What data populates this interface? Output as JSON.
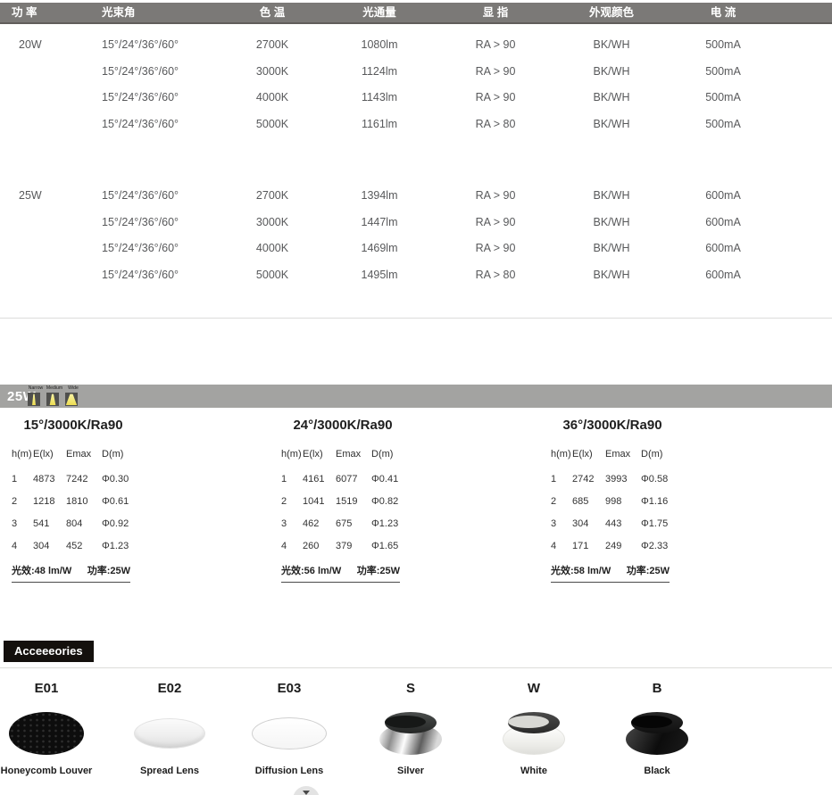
{
  "colors": {
    "header_bar_bg": "#7b7977",
    "band_bg": "#a3a3a1",
    "section_label_bg": "#14100d",
    "beam_yellow": "#eede52"
  },
  "spec_table": {
    "headers": {
      "power": "功 率",
      "beam_angle": "光束角",
      "cct": "色 温",
      "flux": "光通量",
      "cri": "显 指",
      "finish": "外观颜色",
      "current": "电 流"
    },
    "groups": [
      {
        "power": "20W",
        "rows": [
          {
            "beam": "15°/24°/36°/60°",
            "cct": "2700K",
            "flux": "1080lm",
            "cri": "RA > 90",
            "finish": "BK/WH",
            "current": "500mA"
          },
          {
            "beam": "15°/24°/36°/60°",
            "cct": "3000K",
            "flux": "1124lm",
            "cri": "RA > 90",
            "finish": "BK/WH",
            "current": "500mA"
          },
          {
            "beam": "15°/24°/36°/60°",
            "cct": "4000K",
            "flux": "1143lm",
            "cri": "RA > 90",
            "finish": "BK/WH",
            "current": "500mA"
          },
          {
            "beam": "15°/24°/36°/60°",
            "cct": "5000K",
            "flux": "1161lm",
            "cri": "RA > 80",
            "finish": "BK/WH",
            "current": "500mA"
          }
        ]
      },
      {
        "power": "25W",
        "rows": [
          {
            "beam": "15°/24°/36°/60°",
            "cct": "2700K",
            "flux": "1394lm",
            "cri": "RA > 90",
            "finish": "BK/WH",
            "current": "600mA"
          },
          {
            "beam": "15°/24°/36°/60°",
            "cct": "3000K",
            "flux": "1447lm",
            "cri": "RA > 90",
            "finish": "BK/WH",
            "current": "600mA"
          },
          {
            "beam": "15°/24°/36°/60°",
            "cct": "4000K",
            "flux": "1469lm",
            "cri": "RA > 90",
            "finish": "BK/WH",
            "current": "600mA"
          },
          {
            "beam": "15°/24°/36°/60°",
            "cct": "5000K",
            "flux": "1495lm",
            "cri": "RA > 80",
            "finish": "BK/WH",
            "current": "600mA"
          }
        ]
      }
    ]
  },
  "photometric": {
    "band_label": "25W",
    "beam_icons": [
      {
        "label": "Narrow",
        "icon": "narrow-beam-icon"
      },
      {
        "label": "Medium",
        "icon": "medium-beam-icon"
      },
      {
        "label": "Wide",
        "icon": "wide-beam-icon"
      }
    ],
    "tables": [
      {
        "title": "15°/3000K/Ra90",
        "columns": [
          "h(m)",
          "E(lx)",
          "Emax",
          "D(m)"
        ],
        "rows": [
          [
            "1",
            "4873",
            "7242",
            "Φ0.30"
          ],
          [
            "2",
            "1218",
            "1810",
            "Φ0.61"
          ],
          [
            "3",
            "541",
            "804",
            "Φ0.92"
          ],
          [
            "4",
            "304",
            "452",
            "Φ1.23"
          ]
        ],
        "efficacy": "光效:48 lm/W",
        "power": "功率:25W"
      },
      {
        "title": "24°/3000K/Ra90",
        "columns": [
          "h(m)",
          "E(lx)",
          "Emax",
          "D(m)"
        ],
        "rows": [
          [
            "1",
            "4161",
            "6077",
            "Φ0.41"
          ],
          [
            "2",
            "1041",
            "1519",
            "Φ0.82"
          ],
          [
            "3",
            "462",
            "675",
            "Φ1.23"
          ],
          [
            "4",
            "260",
            "379",
            "Φ1.65"
          ]
        ],
        "efficacy": "光效:56 lm/W",
        "power": "功率:25W"
      },
      {
        "title": "36°/3000K/Ra90",
        "columns": [
          "h(m)",
          "E(lx)",
          "Emax",
          "D(m)"
        ],
        "rows": [
          [
            "1",
            "2742",
            "3993",
            "Φ0.58"
          ],
          [
            "2",
            "685",
            "998",
            "Φ1.16"
          ],
          [
            "3",
            "304",
            "443",
            "Φ1.75"
          ],
          [
            "4",
            "171",
            "249",
            "Φ2.33"
          ]
        ],
        "efficacy": "光效:58 lm/W",
        "power": "功率:25W"
      }
    ]
  },
  "accessories": {
    "section_label": "Acceeeories",
    "items": [
      {
        "code": "E01",
        "name": "Honeycomb Louver",
        "icon": "honeycomb-louver"
      },
      {
        "code": "E02",
        "name": "Spread Lens",
        "icon": "spread-lens"
      },
      {
        "code": "E03",
        "name": "Diffusion Lens",
        "icon": "diffusion-lens"
      },
      {
        "code": "S",
        "name": "Silver",
        "icon": "silver-reflector"
      },
      {
        "code": "W",
        "name": "White",
        "icon": "white-reflector"
      },
      {
        "code": "B",
        "name": "Black",
        "icon": "black-reflector"
      }
    ]
  }
}
